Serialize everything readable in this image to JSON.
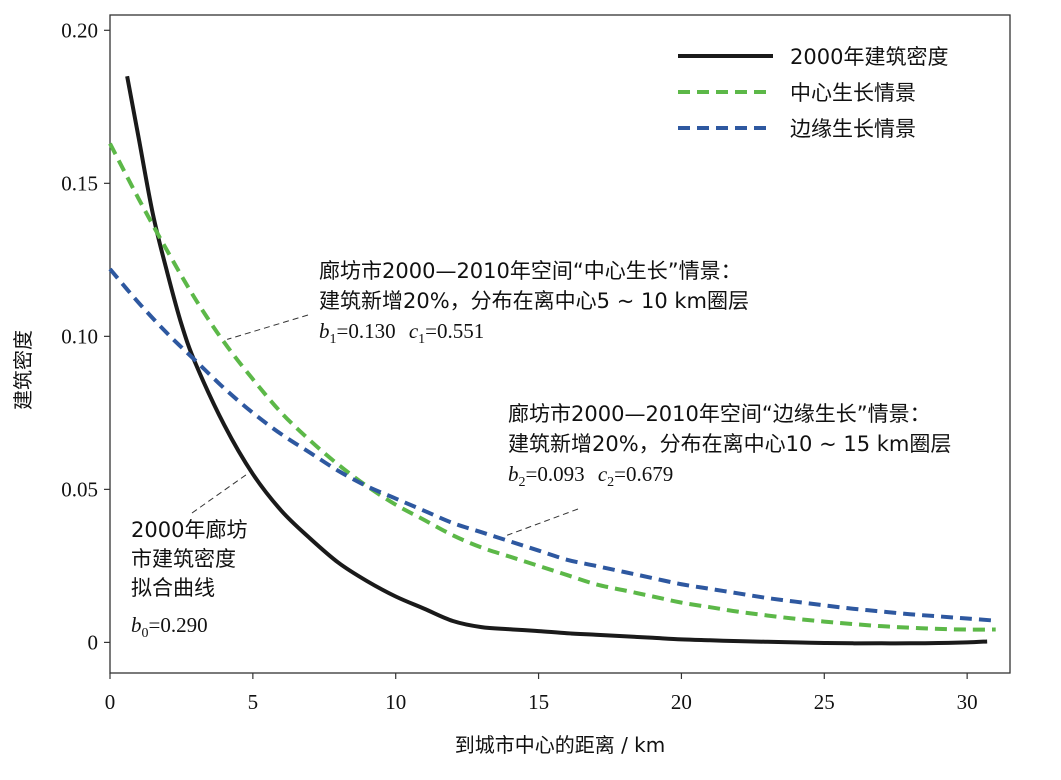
{
  "chart_data": {
    "type": "line",
    "xlabel": "到城市中心的距离 / km",
    "ylabel": "建筑密度",
    "xlim": [
      0,
      31.5
    ],
    "ylim": [
      -0.01,
      0.205
    ],
    "x_ticks": [
      0,
      5,
      10,
      15,
      20,
      25,
      30
    ],
    "y_ticks": [
      0,
      0.05,
      0.1,
      0.15,
      0.2
    ],
    "x_tick_labels": [
      "0",
      "5",
      "10",
      "15",
      "20",
      "25",
      "30"
    ],
    "y_tick_labels": [
      "0",
      "0.05",
      "0.10",
      "0.15",
      "0.20"
    ],
    "grid": false,
    "legend_position": "top-right",
    "series": [
      {
        "name": "2000年建筑密度",
        "color": "#1a1a1a",
        "style": "solid",
        "x": [
          0.6,
          1,
          1.5,
          2,
          2.5,
          3,
          4,
          5,
          6,
          7,
          8,
          9,
          10,
          11,
          12,
          13,
          14,
          15,
          16,
          17,
          18,
          19,
          20,
          21,
          22,
          23,
          24,
          25,
          26,
          27,
          28,
          29,
          30,
          30.7
        ],
        "y": [
          0.185,
          0.165,
          0.14,
          0.121,
          0.104,
          0.091,
          0.071,
          0.055,
          0.043,
          0.034,
          0.026,
          0.02,
          0.015,
          0.011,
          0.007,
          0.005,
          0.0043,
          0.0037,
          0.003,
          0.0025,
          0.002,
          0.0015,
          0.001,
          0.0007,
          0.0004,
          0.0002,
          0.0,
          -0.0002,
          -0.0003,
          -0.0003,
          -0.0003,
          -0.0002,
          0.0,
          0.0003
        ]
      },
      {
        "name": "中心生长情景",
        "color": "#5cb848",
        "style": "dashed",
        "x": [
          0,
          1,
          2,
          3,
          4,
          5,
          6,
          7,
          8,
          9,
          10,
          11,
          12,
          13,
          14,
          15,
          16,
          17,
          18,
          19,
          20,
          21,
          22,
          23,
          24,
          25,
          26,
          27,
          28,
          29,
          30,
          31
        ],
        "y": [
          0.163,
          0.145,
          0.128,
          0.112,
          0.098,
          0.086,
          0.075,
          0.066,
          0.058,
          0.051,
          0.045,
          0.04,
          0.035,
          0.031,
          0.028,
          0.025,
          0.022,
          0.019,
          0.017,
          0.015,
          0.013,
          0.0115,
          0.01,
          0.0088,
          0.0077,
          0.0068,
          0.006,
          0.0053,
          0.0048,
          0.0044,
          0.0042,
          0.0042
        ]
      },
      {
        "name": "边缘生长情景",
        "color": "#2e58a0",
        "style": "dashed",
        "x": [
          0,
          1,
          2,
          3,
          4,
          5,
          6,
          7,
          8,
          9,
          10,
          11,
          12,
          13,
          14,
          15,
          16,
          17,
          18,
          19,
          20,
          21,
          22,
          23,
          24,
          25,
          26,
          27,
          28,
          29,
          30,
          31
        ],
        "y": [
          0.122,
          0.111,
          0.101,
          0.092,
          0.083,
          0.075,
          0.068,
          0.062,
          0.056,
          0.051,
          0.047,
          0.043,
          0.039,
          0.036,
          0.033,
          0.03,
          0.027,
          0.025,
          0.023,
          0.021,
          0.019,
          0.0175,
          0.016,
          0.0145,
          0.0133,
          0.0121,
          0.011,
          0.0101,
          0.0092,
          0.0085,
          0.0078,
          0.0071
        ]
      }
    ],
    "annotations": [
      {
        "id": "center",
        "lines": [
          "廊坊市2000—2010年空间“中心生长”情景：",
          "建筑新增20%，分布在离中心5 ~ 10 km圈层"
        ],
        "params": [
          {
            "b": "b",
            "bsub": "1",
            "bval": "=0.130",
            "c": "c",
            "csub": "1",
            "cval": "=0.551"
          }
        ],
        "pointer_to": {
          "x": 4.1,
          "y": 0.099
        }
      },
      {
        "id": "edge",
        "lines": [
          "廊坊市2000—2010年空间“边缘生长”情景：",
          "建筑新增20%，分布在离中心10 ~ 15 km圈层"
        ],
        "params": [
          {
            "b": "b",
            "bsub": "2",
            "bval": "=0.093",
            "c": "c",
            "csub": "2",
            "cval": "=0.679"
          }
        ],
        "pointer_to": {
          "x": 13.9,
          "y": 0.035
        }
      },
      {
        "id": "fit2000",
        "lines": [
          "2000年廊坊",
          "市建筑密度",
          "拟合曲线"
        ],
        "params": [
          {
            "b": "b",
            "bsub": "0",
            "bval": "=0.290"
          }
        ],
        "pointer_to": {
          "x": 4.8,
          "y": 0.055
        }
      }
    ]
  }
}
